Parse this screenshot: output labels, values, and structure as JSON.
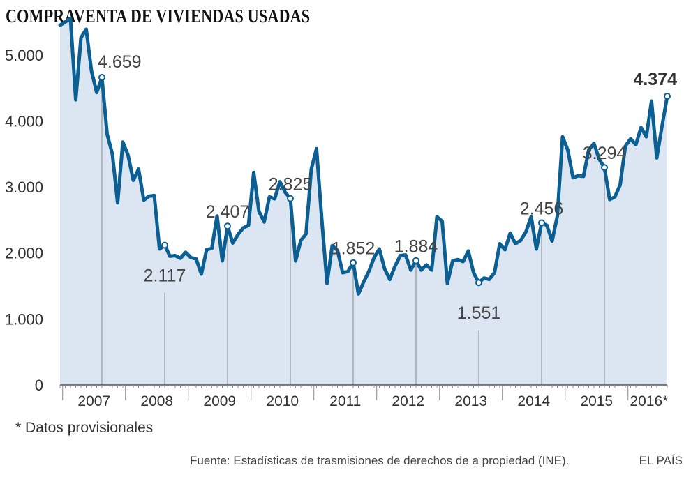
{
  "title": "COMPRAVENTA DE VIVIENDAS USADAS",
  "note": "* Datos provisionales",
  "source": "Fuente: Estadísticas de trasmisiones de derechos de a propiedad (INE).",
  "brand": "EL PAÍS",
  "colors": {
    "line": "#0b5f93",
    "area": "#dce6f2",
    "axis": "#555555",
    "text": "#333333"
  },
  "chart_data": {
    "type": "area",
    "title": "COMPRAVENTA DE VIVIENDAS USADAS",
    "xlabel": "",
    "ylabel": "",
    "ylim": [
      0,
      5600
    ],
    "yticks": [
      {
        "value": 0,
        "label": "0"
      },
      {
        "value": 1000,
        "label": "1.000"
      },
      {
        "value": 2000,
        "label": "2.000"
      },
      {
        "value": 3000,
        "label": "3.000"
      },
      {
        "value": 4000,
        "label": "4.000"
      },
      {
        "value": 5000,
        "label": "5.000"
      }
    ],
    "years": [
      "2007",
      "2008",
      "2009",
      "2010",
      "2011",
      "2012",
      "2013",
      "2014",
      "2015",
      "2016*"
    ],
    "x_start": "2006-12",
    "x_end": "2016-08",
    "grid": false,
    "values": [
      5450,
      5500,
      5550,
      4320,
      5260,
      5390,
      4760,
      4430,
      4659,
      3800,
      3500,
      2760,
      3680,
      3480,
      3100,
      3270,
      2800,
      2860,
      2870,
      2060,
      2117,
      1950,
      1960,
      1920,
      2010,
      1930,
      1910,
      1680,
      2050,
      2070,
      2560,
      1880,
      2407,
      2150,
      2280,
      2380,
      2420,
      3220,
      2630,
      2470,
      2850,
      2820,
      3080,
      2920,
      2825,
      1880,
      2190,
      2290,
      3270,
      3580,
      2510,
      1540,
      2110,
      2040,
      1700,
      1720,
      1852,
      1380,
      1560,
      1720,
      1930,
      2060,
      1760,
      1600,
      1800,
      1960,
      1970,
      1740,
      1884,
      1740,
      1820,
      1740,
      2550,
      2480,
      1540,
      1880,
      1900,
      1870,
      2030,
      1700,
      1551,
      1620,
      1600,
      1700,
      2140,
      2050,
      2300,
      2140,
      2190,
      2320,
      2550,
      2060,
      2456,
      2420,
      2180,
      2560,
      3760,
      3560,
      3140,
      3170,
      3160,
      3560,
      3660,
      3420,
      3294,
      2810,
      2850,
      3030,
      3620,
      3730,
      3640,
      3900,
      3760,
      4300,
      3440,
      3920,
      4374
    ],
    "annotations": [
      {
        "index": 8,
        "label": "4.659",
        "bold": false,
        "drop_line": true
      },
      {
        "index": 20,
        "label": "2.117",
        "bold": false,
        "drop_line": true
      },
      {
        "index": 32,
        "label": "2.407",
        "bold": false,
        "drop_line": true
      },
      {
        "index": 44,
        "label": "2.825",
        "bold": false,
        "drop_line": true
      },
      {
        "index": 56,
        "label": "1.852",
        "bold": false,
        "drop_line": true
      },
      {
        "index": 68,
        "label": "1.884",
        "bold": false,
        "drop_line": true
      },
      {
        "index": 80,
        "label": "1.551",
        "bold": false,
        "drop_line": true
      },
      {
        "index": 92,
        "label": "2.456",
        "bold": false,
        "drop_line": true
      },
      {
        "index": 104,
        "label": "3.294",
        "bold": false,
        "drop_line": true
      },
      {
        "index": 116,
        "label": "4.374",
        "bold": true,
        "drop_line": false
      }
    ]
  }
}
